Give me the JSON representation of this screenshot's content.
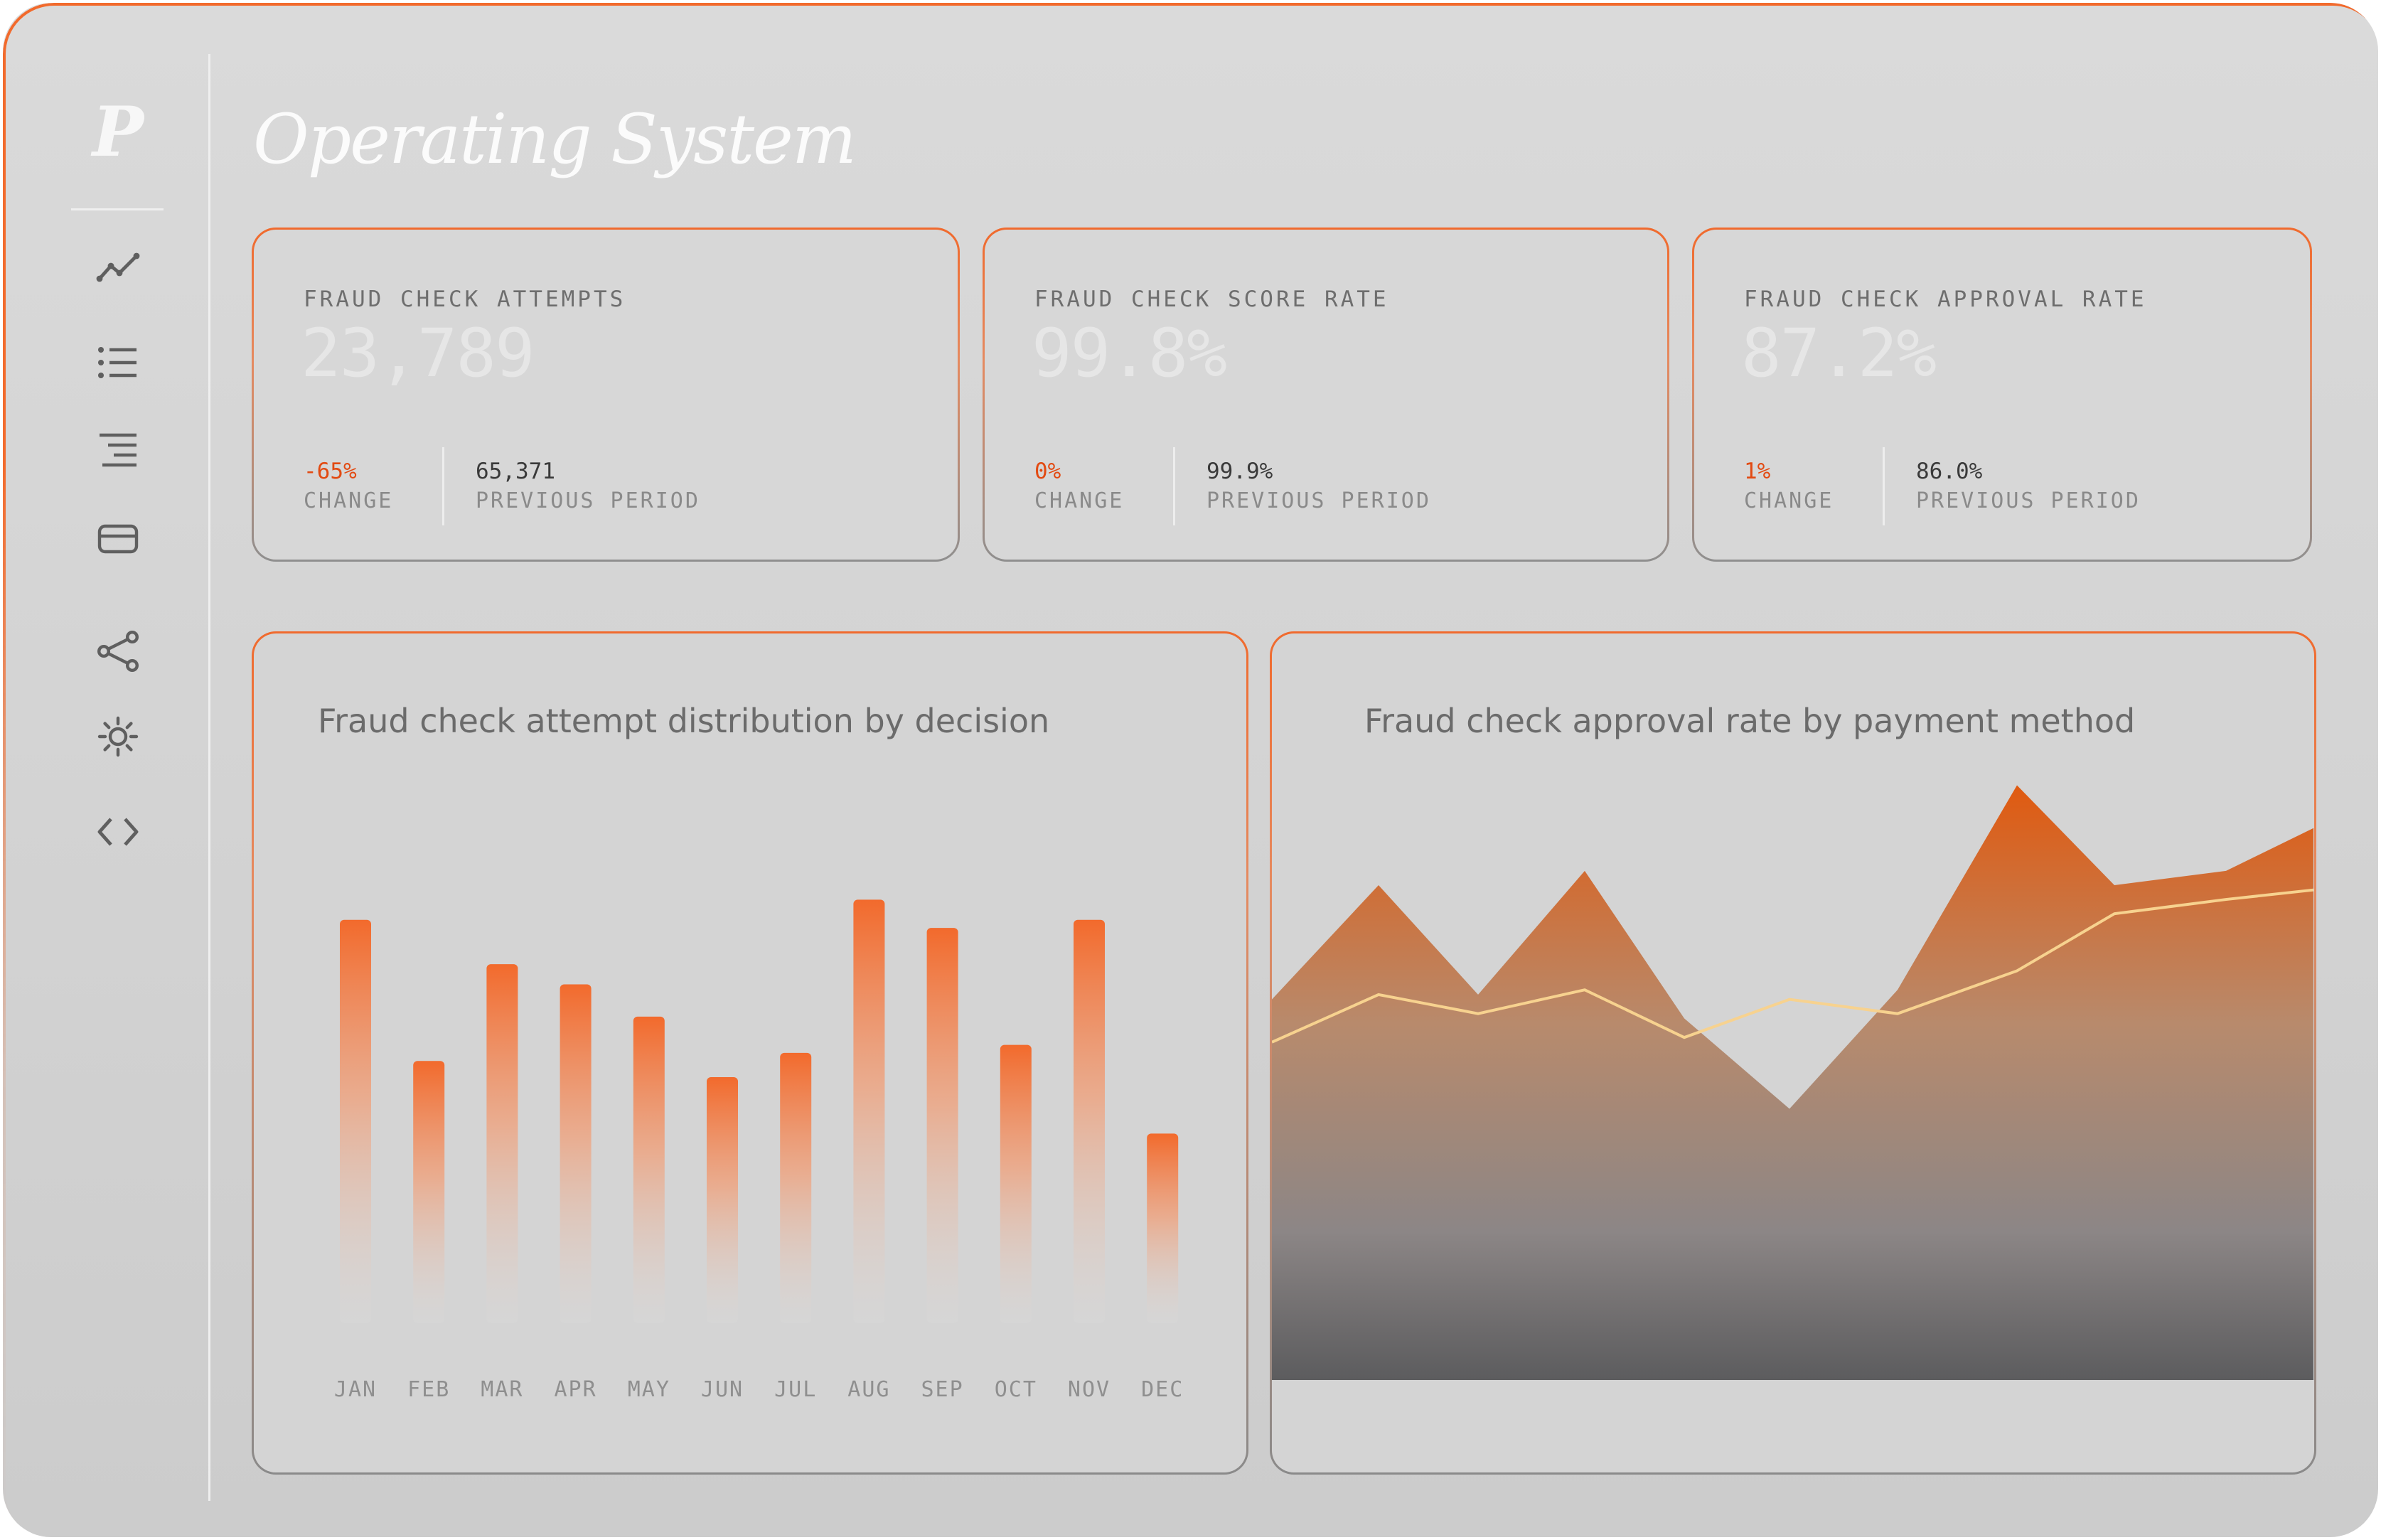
{
  "app": {
    "logo_letter": "P",
    "title": "Operating System"
  },
  "colors": {
    "accent": "#f26a2c",
    "accent_dark": "#e05a10",
    "line": "#f7d28f",
    "negative": "#e24a12"
  },
  "sidebar": {
    "items": [
      {
        "icon": "line-chart-icon"
      },
      {
        "icon": "bullet-list-icon"
      },
      {
        "icon": "text-align-icon"
      },
      {
        "icon": "credit-card-icon"
      },
      {
        "icon": "share-icon"
      },
      {
        "icon": "gear-icon"
      },
      {
        "icon": "code-icon"
      }
    ]
  },
  "stats": [
    {
      "label": "FRAUD CHECK ATTEMPTS",
      "value": "23,789",
      "change": "-65%",
      "change_label": "CHANGE",
      "previous": "65,371",
      "previous_label": "PREVIOUS PERIOD"
    },
    {
      "label": "FRAUD CHECK SCORE RATE",
      "value": "99.8%",
      "change": "0%",
      "change_label": "CHANGE",
      "previous": "99.9%",
      "previous_label": "PREVIOUS PERIOD"
    },
    {
      "label": "FRAUD CHECK APPROVAL RATE",
      "value": "87.2%",
      "change": "1%",
      "change_label": "CHANGE",
      "previous": "86.0%",
      "previous_label": "PREVIOUS PERIOD"
    }
  ],
  "chart_data": [
    {
      "type": "bar",
      "title": "Fraud check attempt distribution by decision",
      "categories": [
        "JAN",
        "FEB",
        "MAR",
        "APR",
        "MAY",
        "JUN",
        "JUL",
        "AUG",
        "SEP",
        "OCT",
        "NOV",
        "DEC"
      ],
      "values": [
        100,
        65,
        89,
        84,
        76,
        61,
        67,
        105,
        98,
        69,
        100,
        47
      ],
      "ylim": [
        0,
        110
      ],
      "grid": false,
      "legend": "none"
    },
    {
      "type": "area",
      "title": "Fraud check approval rate by payment method",
      "x": [
        0,
        1,
        2,
        3,
        4,
        5,
        6,
        7,
        8,
        9,
        10
      ],
      "series": [
        {
          "kind": "area",
          "values": [
            80,
            104,
            81,
            107,
            76,
            57,
            82,
            125,
            104,
            107,
            116
          ]
        },
        {
          "kind": "line",
          "values": [
            71,
            81,
            77,
            82,
            72,
            80,
            77,
            86,
            98,
            101,
            103
          ]
        }
      ],
      "ylim": [
        0,
        130
      ],
      "grid": false,
      "legend": "none"
    }
  ]
}
